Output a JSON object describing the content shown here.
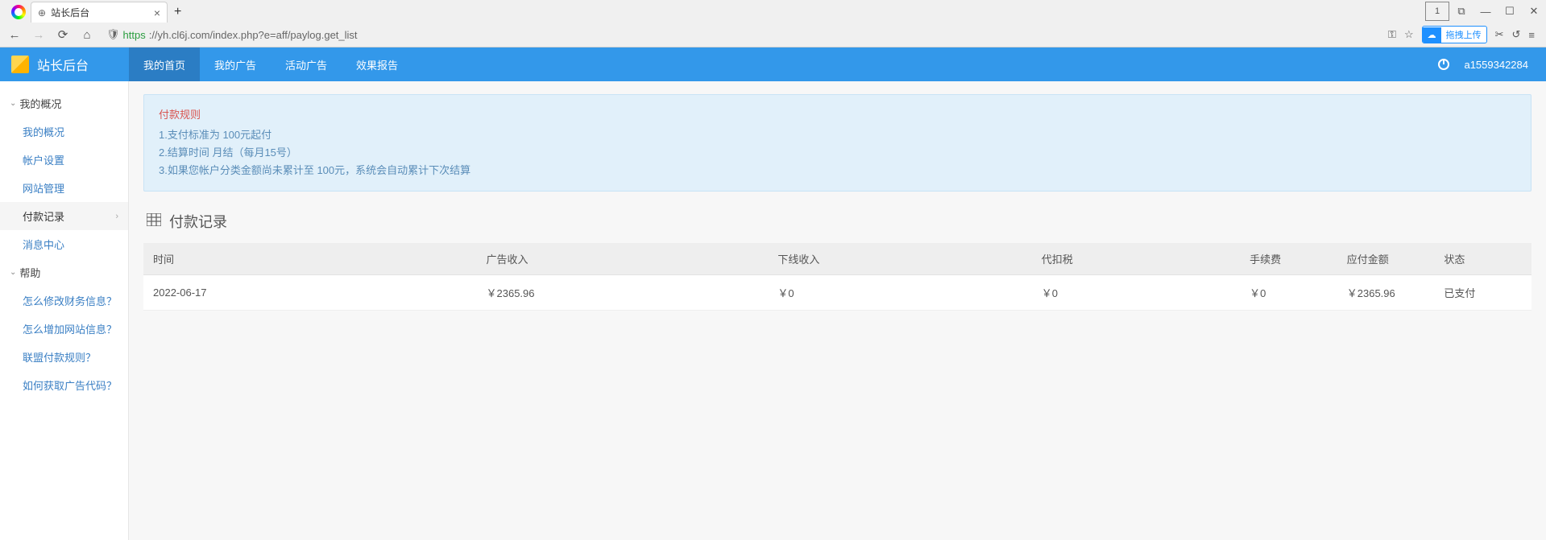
{
  "browser": {
    "tab_title": "站长后台",
    "url_https": "https",
    "url_rest": "://yh.cl6j.com/index.php?e=aff/paylog.get_list",
    "tab_count": "1",
    "upload_label": "拖拽上传"
  },
  "header": {
    "brand": "站长后台",
    "nav": [
      "我的首页",
      "我的广告",
      "活动广告",
      "效果报告"
    ],
    "username": "a1559342284"
  },
  "sidebar": {
    "group1": {
      "title": "我的概况",
      "items": [
        "我的概况",
        "帐户设置",
        "网站管理",
        "付款记录",
        "消息中心"
      ],
      "active_index": 3
    },
    "group2": {
      "title": "帮助",
      "items": [
        "怎么修改财务信息？",
        "怎么增加网站信息？",
        "联盟付款规则？",
        "如何获取广告代码？"
      ]
    }
  },
  "rules": {
    "title": "付款规则",
    "lines": [
      "1.支付标准为 100元起付",
      "2.结算时间 月结（每月15号）",
      "3.如果您帐户分类金额尚未累计至 100元，系统会自动累计下次结算"
    ]
  },
  "section_title": "付款记录",
  "table": {
    "columns": [
      "时间",
      "广告收入",
      "下线收入",
      "代扣税",
      "手续费",
      "应付金额",
      "状态"
    ],
    "col_widths": [
      "24%",
      "21%",
      "19%",
      "15%",
      "7%",
      "7%",
      "7%"
    ],
    "header_bg": "#eeeeee",
    "rows": [
      {
        "cells": [
          "2022-06-17",
          "￥2365.96",
          "￥0",
          "￥0",
          "￥0",
          "￥2365.96",
          "已支付"
        ],
        "status_col": 6
      }
    ]
  },
  "colors": {
    "header_bg": "#3398ea",
    "link": "#3a7fc4",
    "rule_bg": "#e1f0fa"
  }
}
